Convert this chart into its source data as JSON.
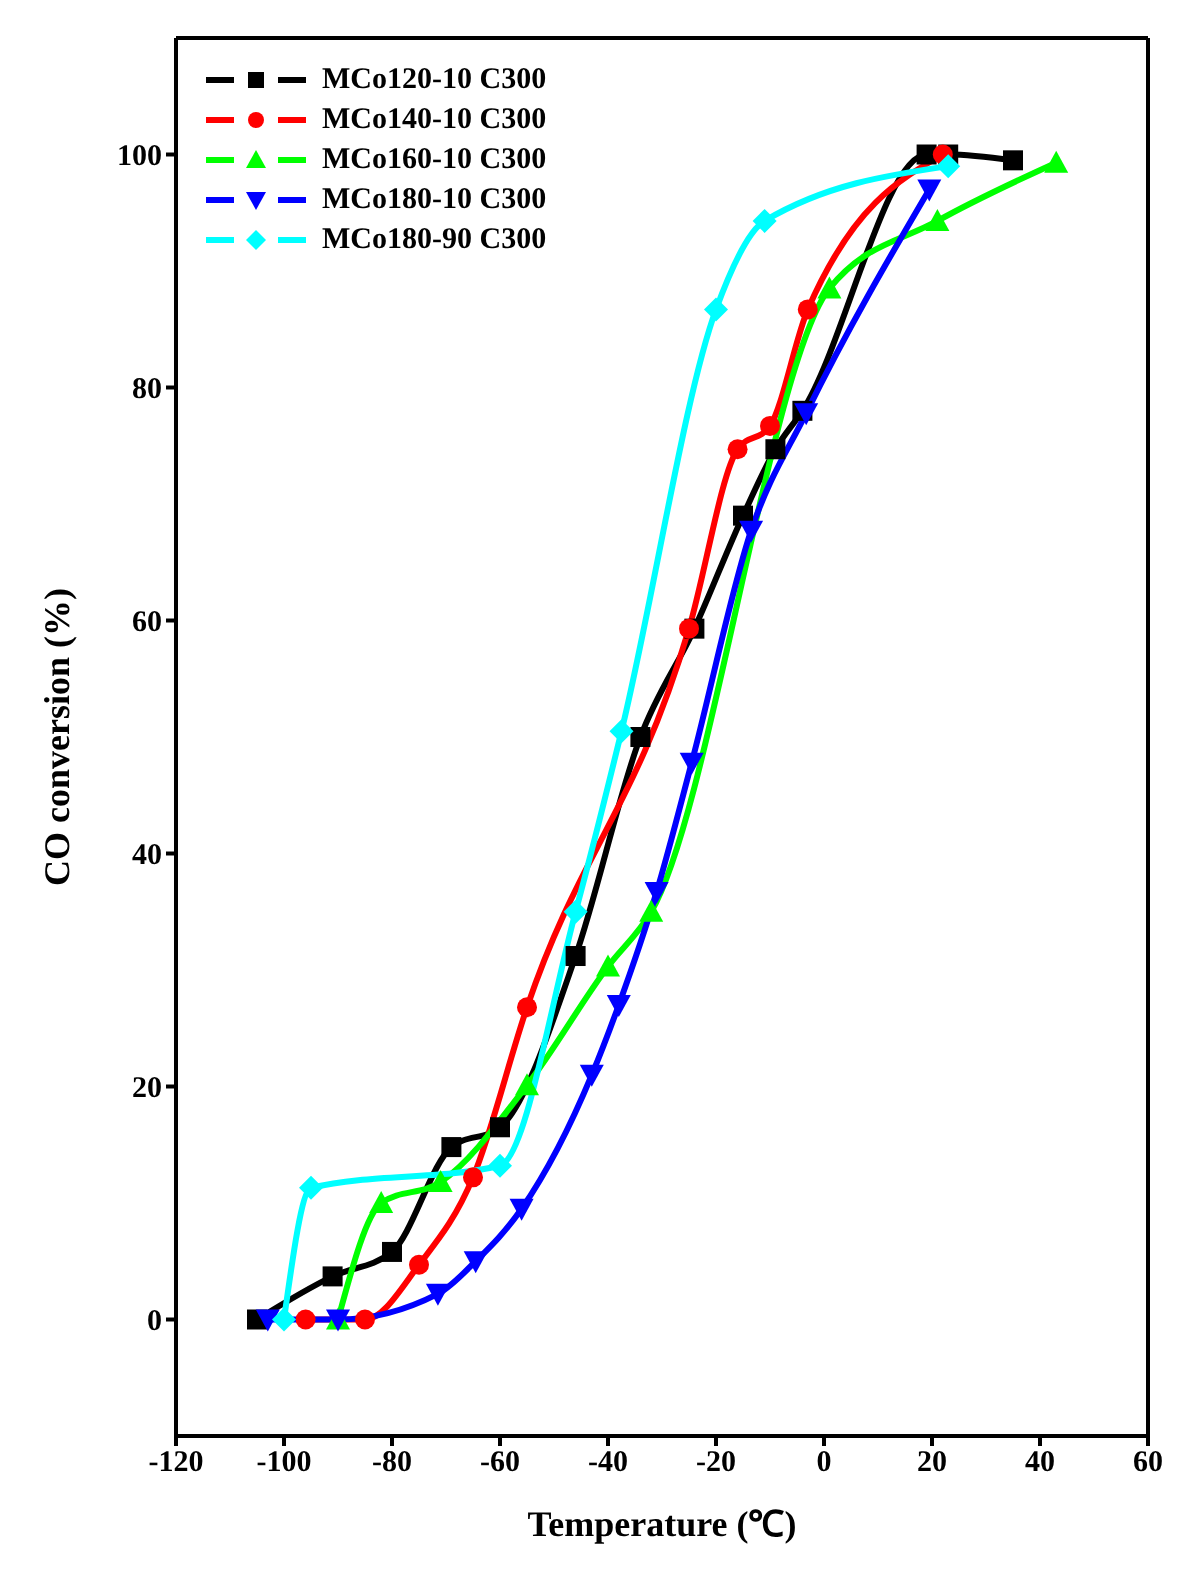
{
  "chart_data": {
    "type": "line",
    "xlabel": "Temperature (℃)",
    "ylabel": "CO conversion (%)",
    "xlim": [
      -120,
      60
    ],
    "xticks": [
      -120,
      -100,
      -80,
      -60,
      -40,
      -20,
      0,
      20,
      40,
      60
    ],
    "ylim": [
      -10,
      110
    ],
    "yticks": [
      0,
      20,
      40,
      60,
      80,
      100
    ],
    "grid": false,
    "legend": "top left",
    "line_style": "solid",
    "series": [
      {
        "name": "MCo120-10 C300",
        "color": "#000000",
        "marker": "square",
        "x": [
          -105,
          -91,
          -80,
          -69,
          -60,
          -46,
          -34,
          -24,
          -15,
          -9,
          -4,
          19,
          23,
          35
        ],
        "values": [
          0,
          3.7,
          5.8,
          14.8,
          16.5,
          31.2,
          50,
          59.3,
          69,
          74.7,
          78,
          100,
          100,
          99.5
        ]
      },
      {
        "name": "MCo140-10 C300",
        "color": "#ff0000",
        "marker": "circle",
        "x": [
          -96,
          -85,
          -75,
          -65,
          -55,
          -25,
          -16,
          -10,
          -3,
          22
        ],
        "values": [
          0,
          0,
          4.7,
          12.2,
          26.8,
          59.3,
          74.7,
          76.7,
          86.7,
          100
        ]
      },
      {
        "name": "MCo160-10 C300",
        "color": "#00ff00",
        "marker": "triangle",
        "x": [
          -90,
          -82,
          -71,
          -55,
          -40,
          -32,
          1,
          21,
          43
        ],
        "values": [
          0,
          10,
          11.8,
          20.1,
          30.3,
          35,
          88.5,
          94.3,
          99.3
        ]
      },
      {
        "name": "MCo180-10 C300",
        "color": "#0000ff",
        "marker": "triangle-down",
        "x": [
          -103,
          -90,
          -71.5,
          -64.5,
          -56,
          -43,
          -38,
          -31,
          -24.5,
          -13.5,
          -3.3,
          19.5
        ],
        "values": [
          0,
          0,
          2.2,
          5,
          9.5,
          21,
          27,
          36.7,
          47.8,
          67.7,
          77.8,
          97
        ]
      },
      {
        "name": "MCo180-90 C300",
        "color": "#00ffff",
        "marker": "diamond",
        "x": [
          -100,
          -95,
          -60,
          -46,
          -37.5,
          -20,
          -11,
          23
        ],
        "values": [
          0,
          11.3,
          13.2,
          35,
          50.5,
          86.7,
          94.3,
          99
        ]
      }
    ]
  }
}
